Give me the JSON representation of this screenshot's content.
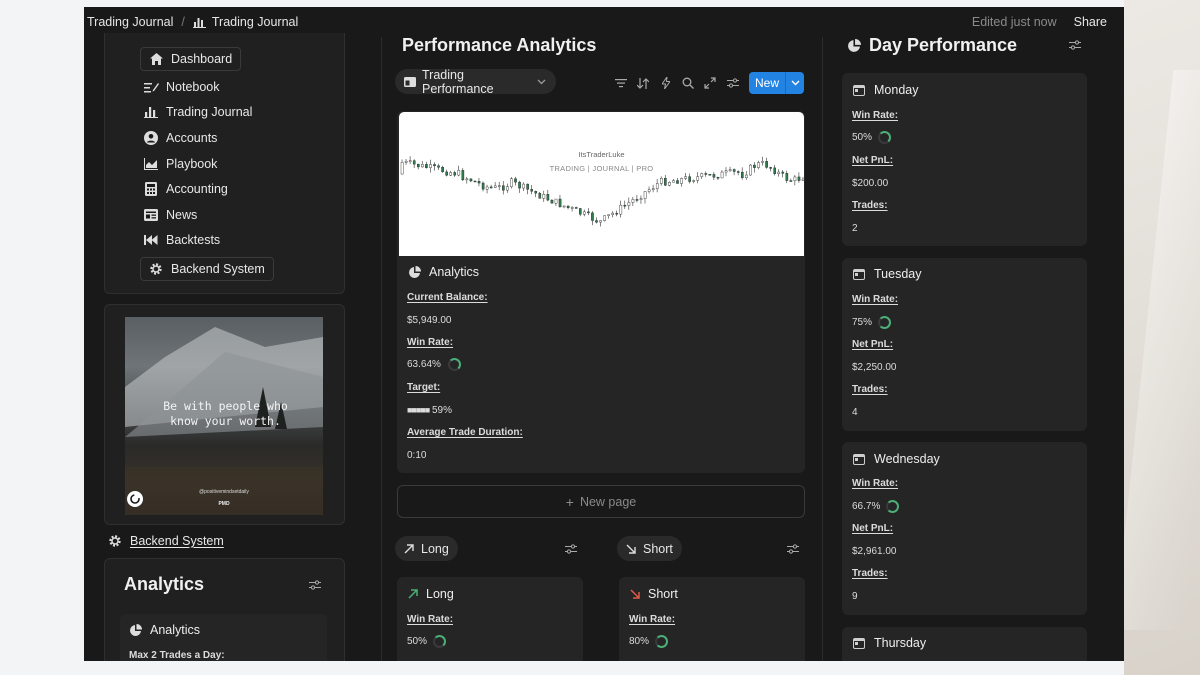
{
  "breadcrumb": {
    "first": "Trading Journal",
    "second": "Trading Journal"
  },
  "topbar": {
    "edited": "Edited just now",
    "share": "Share"
  },
  "sidebar": {
    "items": [
      {
        "label": "Dashboard",
        "icon": "home-icon"
      },
      {
        "label": "Notebook",
        "icon": "notebook-icon"
      },
      {
        "label": "Trading Journal",
        "icon": "bar-chart-icon"
      },
      {
        "label": "Accounts",
        "icon": "user-circle-icon"
      },
      {
        "label": "Playbook",
        "icon": "area-chart-icon"
      },
      {
        "label": "Accounting",
        "icon": "calculator-icon"
      },
      {
        "label": "News",
        "icon": "newspaper-icon"
      },
      {
        "label": "Backtests",
        "icon": "rewind-icon"
      },
      {
        "label": "Backend System",
        "icon": "gear-icon"
      }
    ],
    "quote": "Be with people who know your worth.",
    "quote_credit": "@positivemindsetdaily",
    "quote_tag": "PMD",
    "backend_link": "Backend System",
    "analytics_title": "Analytics",
    "analytics_card_title": "Analytics",
    "analytics_rule": "Max 2 Trades a Day:"
  },
  "main": {
    "title": "Performance Analytics",
    "view_pill": "Trading Performance",
    "new_button": "New",
    "chart_watermark_1": "ItsTraderLuke",
    "chart_watermark_2": "TRADING | JOURNAL | PRO",
    "analytics": {
      "title": "Analytics",
      "current_balance_label": "Current Balance:",
      "current_balance": "$5,949.00",
      "win_rate_label": "Win Rate:",
      "win_rate": "63.64%",
      "target_label": "Target:",
      "target": "59%",
      "target_blocks": "■■■■■",
      "avg_duration_label": "Average Trade Duration:",
      "avg_duration": "0:10"
    },
    "new_page": "New page",
    "long_pill": "Long",
    "short_pill": "Short",
    "long_card": {
      "title": "Long",
      "win_rate_label": "Win Rate:",
      "win_rate": "50%"
    },
    "short_card": {
      "title": "Short",
      "win_rate_label": "Win Rate:",
      "win_rate": "80%"
    }
  },
  "day_performance": {
    "title": "Day Performance",
    "days": [
      {
        "name": "Monday",
        "win_rate_label": "Win Rate:",
        "win_rate": "50%",
        "pnl_label": "Net PnL:",
        "pnl": "$200.00",
        "trades_label": "Trades:",
        "trades": "2"
      },
      {
        "name": "Tuesday",
        "win_rate_label": "Win Rate:",
        "win_rate": "75%",
        "pnl_label": "Net PnL:",
        "pnl": "$2,250.00",
        "trades_label": "Trades:",
        "trades": "4"
      },
      {
        "name": "Wednesday",
        "win_rate_label": "Win Rate:",
        "win_rate": "66.7%",
        "pnl_label": "Net PnL:",
        "pnl": "$2,961.00",
        "trades_label": "Trades:",
        "trades": "9"
      },
      {
        "name": "Thursday"
      }
    ]
  },
  "colors": {
    "accent": "#2383e2",
    "ring_green": "#4caf78",
    "up_arrow": "#4caf78",
    "down_arrow": "#e05a4a"
  }
}
